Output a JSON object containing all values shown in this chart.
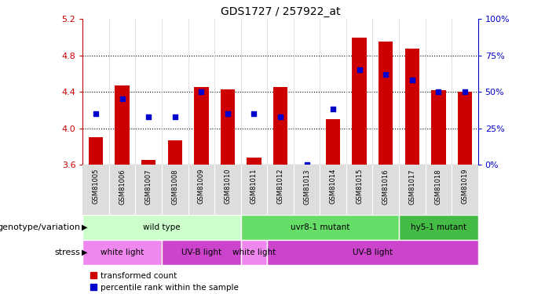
{
  "title": "GDS1727 / 257922_at",
  "samples": [
    "GSM81005",
    "GSM81006",
    "GSM81007",
    "GSM81008",
    "GSM81009",
    "GSM81010",
    "GSM81011",
    "GSM81012",
    "GSM81013",
    "GSM81014",
    "GSM81015",
    "GSM81016",
    "GSM81017",
    "GSM81018",
    "GSM81019"
  ],
  "bar_values": [
    3.9,
    4.47,
    3.65,
    3.87,
    4.45,
    4.43,
    3.68,
    4.45,
    3.6,
    4.1,
    5.0,
    4.95,
    4.88,
    4.42,
    4.4
  ],
  "percentile_values": [
    35,
    45,
    33,
    33,
    50,
    35,
    35,
    33,
    0,
    38,
    65,
    62,
    58,
    50,
    50
  ],
  "ylim": [
    3.6,
    5.2
  ],
  "yticks": [
    3.6,
    4.0,
    4.4,
    4.8,
    5.2
  ],
  "right_yticks": [
    0,
    25,
    50,
    75,
    100
  ],
  "right_ylim": [
    0,
    100
  ],
  "bar_color": "#cc0000",
  "percentile_color": "#0000cc",
  "left_axis_color": "#cc0000",
  "right_axis_color": "#0000cc",
  "genotype_groups": [
    {
      "label": "wild type",
      "start": 0,
      "end": 6,
      "color": "#ccffcc"
    },
    {
      "label": "uvr8-1 mutant",
      "start": 6,
      "end": 12,
      "color": "#66dd66"
    },
    {
      "label": "hy5-1 mutant",
      "start": 12,
      "end": 15,
      "color": "#44bb44"
    }
  ],
  "stress_groups": [
    {
      "label": "white light",
      "start": 0,
      "end": 3,
      "color": "#ee88ee"
    },
    {
      "label": "UV-B light",
      "start": 3,
      "end": 6,
      "color": "#cc44cc"
    },
    {
      "label": "white light",
      "start": 6,
      "end": 7,
      "color": "#ee88ee"
    },
    {
      "label": "UV-B light",
      "start": 7,
      "end": 15,
      "color": "#cc44cc"
    }
  ],
  "xlabel_genotype": "genotype/variation",
  "xlabel_stress": "stress",
  "grid_dotted_at": [
    4.0,
    4.4,
    4.8
  ]
}
